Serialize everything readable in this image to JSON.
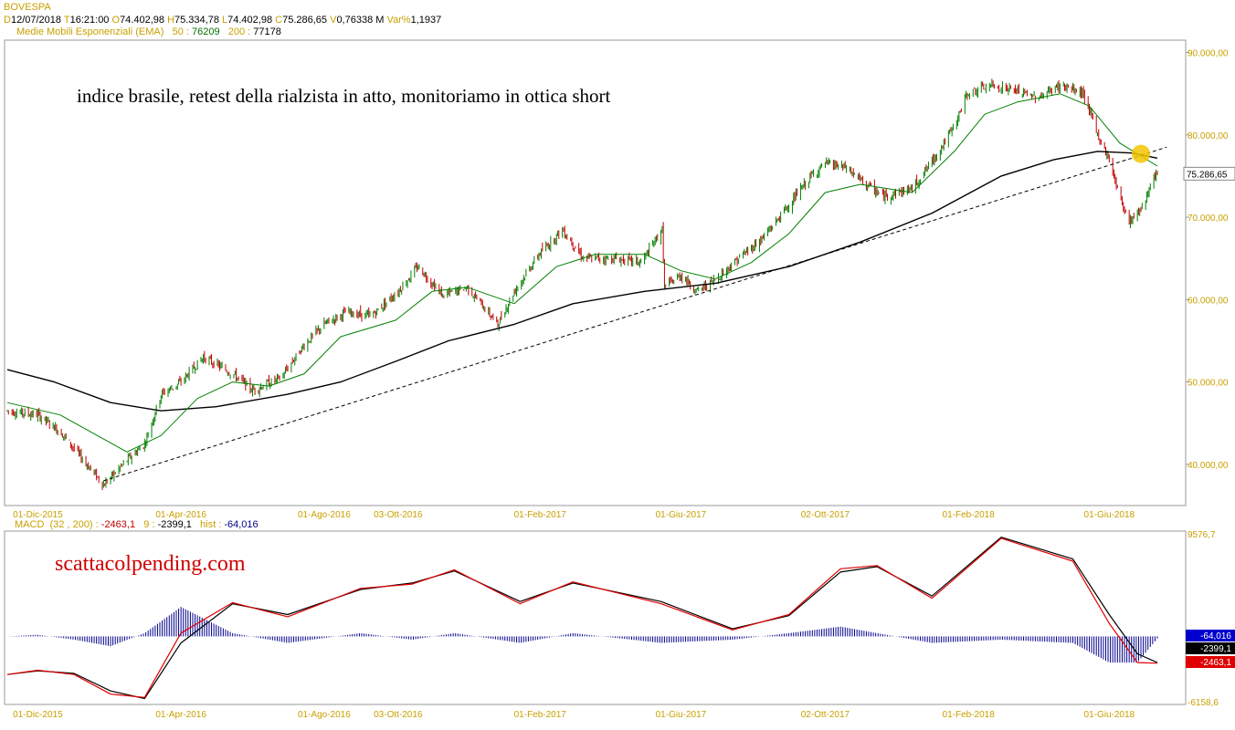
{
  "header": {
    "symbol": "BOVESPA",
    "d_label": "D",
    "date": "12/07/2018",
    "t_label": "T",
    "time": "16:21:00",
    "o_label": "O",
    "open": "74.402,98",
    "h_label": "H",
    "high": "75.334,78",
    "l_label": "L",
    "low": "74.402,98",
    "c_label": "C",
    "close": "75.286,65",
    "v_label": "V",
    "volume": "0,76338 M",
    "var_label": "Var%",
    "var": "1,1937",
    "ema_label": "Medie Mobili Esponenziali (EMA)",
    "ema50_label": "50 :",
    "ema50": "76209",
    "ema200_label": "200 :",
    "ema200": "77178"
  },
  "macd_header": {
    "label": "MACD",
    "params": "(32 , 200) :",
    "macd": "-2463,1",
    "signal_label": "9 :",
    "signal": "-2399,1",
    "hist_label": "hist :",
    "hist": "-64,016"
  },
  "annotations": {
    "main_note": "indice brasile, retest della rialzista in atto, monitoriamo in ottica short",
    "macd_note": "scattacolpending.com"
  },
  "colors": {
    "ema50": "#008000",
    "ema200": "#000000",
    "macd": "#e00000",
    "signal": "#000000",
    "hist": "#00008b",
    "axis": "#c8a000",
    "circle": "#f5c400"
  },
  "chart_data": [
    {
      "type": "line",
      "title": "BOVESPA",
      "series_kind": "candlestick with EMA 50 and EMA 200",
      "y_ticks": [
        "90.000,00",
        "80.000,00",
        "75.286,65",
        "70.000,00",
        "60.000,00",
        "50.000,00",
        "40.000,00"
      ],
      "y_tick_values": [
        90000,
        80000,
        70000,
        60000,
        50000,
        40000
      ],
      "last_price_label": "75.286,65",
      "last_price": 75286.65,
      "ylim": [
        35000,
        91500
      ],
      "x_ticks": [
        "01-Dic-2015",
        "01-Apr-2016",
        "01-Ago-2016",
        "03-Ott-2016",
        "01-Feb-2017",
        "01-Giu-2017",
        "02-Ott-2017",
        "01-Feb-2018",
        "01-Giu-2018"
      ],
      "x_tick_dates": [
        "2015-12-01",
        "2016-04-01",
        "2016-08-01",
        "2016-10-03",
        "2017-02-01",
        "2017-06-01",
        "2017-10-02",
        "2018-02-01",
        "2018-06-01"
      ],
      "x_range_dates": [
        "2015-11-05",
        "2018-07-12"
      ],
      "price": [
        [
          "2015-11-05",
          46500
        ],
        [
          "2015-12-01",
          46000
        ],
        [
          "2015-12-20",
          44000
        ],
        [
          "2016-01-26",
          37500
        ],
        [
          "2016-02-15",
          40500
        ],
        [
          "2016-03-01",
          42500
        ],
        [
          "2016-03-15",
          48500
        ],
        [
          "2016-04-01",
          50000
        ],
        [
          "2016-04-20",
          53000
        ],
        [
          "2016-05-15",
          51000
        ],
        [
          "2016-06-01",
          49000
        ],
        [
          "2016-06-25",
          50500
        ],
        [
          "2016-07-15",
          54500
        ],
        [
          "2016-08-01",
          57000
        ],
        [
          "2016-08-20",
          58500
        ],
        [
          "2016-09-10",
          58000
        ],
        [
          "2016-10-03",
          61000
        ],
        [
          "2016-10-20",
          64000
        ],
        [
          "2016-11-10",
          60500
        ],
        [
          "2016-12-01",
          61500
        ],
        [
          "2016-12-27",
          57000
        ],
        [
          "2017-01-10",
          61000
        ],
        [
          "2017-01-31",
          65500
        ],
        [
          "2017-02-20",
          68500
        ],
        [
          "2017-03-10",
          65000
        ],
        [
          "2017-04-05",
          65000
        ],
        [
          "2017-04-28",
          64500
        ],
        [
          "2017-05-16",
          68500
        ],
        [
          "2017-05-18",
          61500
        ],
        [
          "2017-06-01",
          63000
        ],
        [
          "2017-06-15",
          61000
        ],
        [
          "2017-07-01",
          62500
        ],
        [
          "2017-07-20",
          65000
        ],
        [
          "2017-08-10",
          67500
        ],
        [
          "2017-09-01",
          71500
        ],
        [
          "2017-09-20",
          75000
        ],
        [
          "2017-10-02",
          76500
        ],
        [
          "2017-10-20",
          76000
        ],
        [
          "2017-11-01",
          74500
        ],
        [
          "2017-11-20",
          72500
        ],
        [
          "2017-12-15",
          73500
        ],
        [
          "2018-01-02",
          77000
        ],
        [
          "2018-01-20",
          81000
        ],
        [
          "2018-01-31",
          85000
        ],
        [
          "2018-02-20",
          86000
        ],
        [
          "2018-03-10",
          85500
        ],
        [
          "2018-04-01",
          84500
        ],
        [
          "2018-04-20",
          86000
        ],
        [
          "2018-05-10",
          85000
        ],
        [
          "2018-05-22",
          80000
        ],
        [
          "2018-06-01",
          77000
        ],
        [
          "2018-06-10",
          72500
        ],
        [
          "2018-06-18",
          69500
        ],
        [
          "2018-06-28",
          71000
        ],
        [
          "2018-07-05",
          73500
        ],
        [
          "2018-07-12",
          75286
        ]
      ],
      "ema50": [
        [
          "2015-11-05",
          47500
        ],
        [
          "2015-12-20",
          46000
        ],
        [
          "2016-02-15",
          41500
        ],
        [
          "2016-03-15",
          43500
        ],
        [
          "2016-04-15",
          48000
        ],
        [
          "2016-05-15",
          50000
        ],
        [
          "2016-06-15",
          49500
        ],
        [
          "2016-07-15",
          51000
        ],
        [
          "2016-08-15",
          55500
        ],
        [
          "2016-10-01",
          57500
        ],
        [
          "2016-11-01",
          61000
        ],
        [
          "2016-12-01",
          61500
        ],
        [
          "2017-01-10",
          59500
        ],
        [
          "2017-02-15",
          64000
        ],
        [
          "2017-03-20",
          65500
        ],
        [
          "2017-05-01",
          65500
        ],
        [
          "2017-06-01",
          63500
        ],
        [
          "2017-06-30",
          62500
        ],
        [
          "2017-07-31",
          64500
        ],
        [
          "2017-09-01",
          68000
        ],
        [
          "2017-10-02",
          73000
        ],
        [
          "2017-11-01",
          74000
        ],
        [
          "2017-12-15",
          73000
        ],
        [
          "2018-01-20",
          78000
        ],
        [
          "2018-02-15",
          82500
        ],
        [
          "2018-03-15",
          84000
        ],
        [
          "2018-04-20",
          85000
        ],
        [
          "2018-05-15",
          83500
        ],
        [
          "2018-06-10",
          79000
        ],
        [
          "2018-07-12",
          76209
        ]
      ],
      "ema200": [
        [
          "2015-11-05",
          51500
        ],
        [
          "2015-12-15",
          50000
        ],
        [
          "2016-02-01",
          47500
        ],
        [
          "2016-03-15",
          46500
        ],
        [
          "2016-05-01",
          47000
        ],
        [
          "2016-07-01",
          48500
        ],
        [
          "2016-08-15",
          50000
        ],
        [
          "2016-10-01",
          52500
        ],
        [
          "2016-11-15",
          55000
        ],
        [
          "2017-01-10",
          57000
        ],
        [
          "2017-03-01",
          59500
        ],
        [
          "2017-05-01",
          61000
        ],
        [
          "2017-07-01",
          62000
        ],
        [
          "2017-09-01",
          64000
        ],
        [
          "2017-11-01",
          67000
        ],
        [
          "2018-01-01",
          70500
        ],
        [
          "2018-03-01",
          75000
        ],
        [
          "2018-04-15",
          77000
        ],
        [
          "2018-05-22",
          78000
        ],
        [
          "2018-06-20",
          77800
        ],
        [
          "2018-07-12",
          77178
        ]
      ],
      "trendline": [
        [
          "2016-01-26",
          38000
        ],
        [
          "2018-07-20",
          78500
        ]
      ],
      "highlight_circle": [
        "2018-06-28",
        77700
      ]
    },
    {
      "type": "line",
      "title": "MACD",
      "y_ticks": [
        "9576,7",
        "-6158,6"
      ],
      "ylim": [
        -6158.6,
        9576.7
      ],
      "zero_value": 0,
      "value_labels": [
        "-64,016",
        "-2399,1",
        "-2463,1"
      ],
      "x_ticks": [
        "01-Dic-2015",
        "01-Apr-2016",
        "01-Ago-2016",
        "03-Ott-2016",
        "01-Feb-2017",
        "01-Giu-2017",
        "02-Ott-2017",
        "01-Feb-2018",
        "01-Giu-2018"
      ],
      "macd": [
        [
          "2015-11-05",
          -3500
        ],
        [
          "2015-12-01",
          -3100
        ],
        [
          "2016-01-01",
          -3500
        ],
        [
          "2016-02-01",
          -5300
        ],
        [
          "2016-03-01",
          -5600
        ],
        [
          "2016-04-01",
          300
        ],
        [
          "2016-05-15",
          3100
        ],
        [
          "2016-07-01",
          1800
        ],
        [
          "2016-09-01",
          4400
        ],
        [
          "2016-10-15",
          4800
        ],
        [
          "2016-11-20",
          6100
        ],
        [
          "2017-01-15",
          3000
        ],
        [
          "2017-03-01",
          5000
        ],
        [
          "2017-05-15",
          3000
        ],
        [
          "2017-07-15",
          600
        ],
        [
          "2017-09-01",
          2000
        ],
        [
          "2017-10-15",
          6200
        ],
        [
          "2017-11-15",
          6500
        ],
        [
          "2018-01-01",
          3500
        ],
        [
          "2018-03-01",
          9000
        ],
        [
          "2018-05-01",
          6900
        ],
        [
          "2018-06-01",
          1200
        ],
        [
          "2018-06-25",
          -2400
        ],
        [
          "2018-07-12",
          -2463
        ]
      ],
      "signal": [
        [
          "2015-11-05",
          -3500
        ],
        [
          "2015-12-01",
          -3150
        ],
        [
          "2016-01-01",
          -3400
        ],
        [
          "2016-02-01",
          -5000
        ],
        [
          "2016-03-01",
          -5700
        ],
        [
          "2016-04-01",
          -600
        ],
        [
          "2016-05-15",
          3000
        ],
        [
          "2016-07-01",
          2000
        ],
        [
          "2016-09-01",
          4300
        ],
        [
          "2016-10-15",
          4900
        ],
        [
          "2016-11-20",
          6000
        ],
        [
          "2017-01-15",
          3200
        ],
        [
          "2017-03-01",
          4900
        ],
        [
          "2017-05-15",
          3200
        ],
        [
          "2017-07-15",
          700
        ],
        [
          "2017-09-01",
          1900
        ],
        [
          "2017-10-15",
          5900
        ],
        [
          "2017-11-15",
          6400
        ],
        [
          "2018-01-01",
          3700
        ],
        [
          "2018-03-01",
          9100
        ],
        [
          "2018-05-01",
          7100
        ],
        [
          "2018-06-01",
          2000
        ],
        [
          "2018-06-25",
          -1600
        ],
        [
          "2018-07-12",
          -2399
        ]
      ]
    }
  ]
}
